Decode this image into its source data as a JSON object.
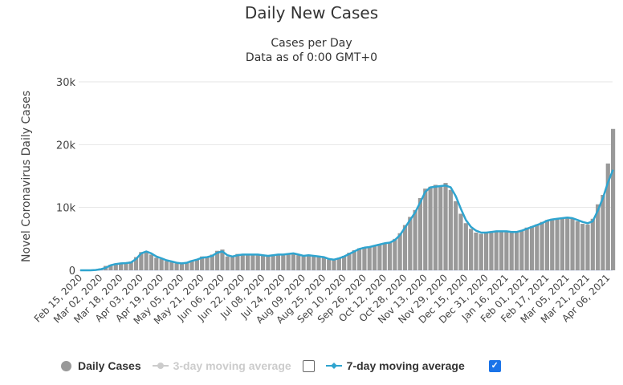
{
  "chart_data": {
    "type": "bar",
    "title": "Daily New Cases",
    "subtitle": [
      "Cases per Day",
      "Data as of 0:00 GMT+0"
    ],
    "ylabel": "Novel Coronavirus Daily Cases",
    "xlabel": "",
    "ylim": [
      0,
      30000
    ],
    "yticks": [
      {
        "v": 0,
        "label": "0"
      },
      {
        "v": 10000,
        "label": "10k"
      },
      {
        "v": 20000,
        "label": "20k"
      },
      {
        "v": 30000,
        "label": "30k"
      }
    ],
    "start_date": "Feb 15, 2020",
    "interval_days": 4,
    "xtick_labels": [
      "Feb 15, 2020",
      "Mar 02, 2020",
      "Mar 18, 2020",
      "Apr 03, 2020",
      "Apr 19, 2020",
      "May 05, 2020",
      "May 21, 2020",
      "Jun 06, 2020",
      "Jun 22, 2020",
      "Jul 08, 2020",
      "Jul 24, 2020",
      "Aug 09, 2020",
      "Aug 25, 2020",
      "Sep 10, 2020",
      "Sep 26, 2020",
      "Oct 12, 2020",
      "Oct 28, 2020",
      "Nov 13, 2020",
      "Nov 29, 2020",
      "Dec 15, 2020",
      "Dec 31, 2020",
      "Jan 16, 2021",
      "Feb 01, 2021",
      "Feb 17, 2021",
      "Mar 05, 2021",
      "Mar 21, 2021",
      "Apr 06, 2021"
    ],
    "xtick_interval_days": 16,
    "series": [
      {
        "name": "Daily Cases",
        "type": "bar",
        "color": "#999999",
        "values": [
          0,
          0,
          20,
          80,
          300,
          700,
          900,
          1100,
          1200,
          1100,
          1400,
          2100,
          2900,
          3000,
          2500,
          2000,
          1800,
          1500,
          1300,
          1100,
          1000,
          1300,
          1600,
          1800,
          2200,
          2100,
          2500,
          3100,
          3300,
          2200,
          2300,
          2600,
          2600,
          2500,
          2600,
          2500,
          2300,
          2400,
          2500,
          2600,
          2400,
          2700,
          2800,
          2400,
          2200,
          2500,
          2300,
          2100,
          2000,
          1700,
          1800,
          2000,
          2300,
          2800,
          3200,
          3500,
          3700,
          3800,
          4000,
          4200,
          4400,
          4500,
          5000,
          5900,
          7200,
          8500,
          9600,
          11500,
          13000,
          13300,
          13600,
          13500,
          13900,
          12800,
          11000,
          9000,
          7500,
          6600,
          6000,
          5800,
          6100,
          6200,
          6300,
          6100,
          6200,
          6000,
          6200,
          6400,
          6800,
          7000,
          7300,
          7700,
          8000,
          8200,
          8300,
          8300,
          8500,
          8200,
          7800,
          7400,
          7300,
          8200,
          10500,
          12000,
          17000,
          22500
        ]
      },
      {
        "name": "7-day moving average",
        "type": "line",
        "color": "#2fa4cf",
        "values": [
          0,
          0,
          0,
          50,
          150,
          400,
          800,
          1000,
          1100,
          1150,
          1250,
          1800,
          2700,
          3000,
          2700,
          2200,
          1900,
          1600,
          1400,
          1200,
          1100,
          1200,
          1500,
          1700,
          2000,
          2100,
          2300,
          2800,
          3000,
          2400,
          2200,
          2400,
          2500,
          2500,
          2500,
          2500,
          2400,
          2300,
          2400,
          2500,
          2500,
          2600,
          2700,
          2500,
          2300,
          2400,
          2300,
          2200,
          2100,
          1800,
          1700,
          1900,
          2200,
          2600,
          3000,
          3400,
          3600,
          3700,
          3900,
          4100,
          4300,
          4400,
          4800,
          5600,
          6800,
          8000,
          9200,
          10800,
          12500,
          13200,
          13300,
          13400,
          13500,
          13200,
          11800,
          9800,
          8000,
          6900,
          6300,
          6000,
          6000,
          6100,
          6200,
          6200,
          6200,
          6100,
          6100,
          6300,
          6600,
          6900,
          7200,
          7500,
          7900,
          8100,
          8200,
          8300,
          8400,
          8300,
          8000,
          7700,
          7500,
          7800,
          9500,
          11500,
          14000,
          16000
        ]
      }
    ],
    "grid": true,
    "legend": {
      "placement": "bottom",
      "items": [
        {
          "label": "Daily Cases",
          "enabled": true
        },
        {
          "label": "3-day moving average",
          "enabled": false,
          "checked": false
        },
        {
          "label": "7-day moving average",
          "enabled": true,
          "checked": true
        }
      ]
    }
  }
}
